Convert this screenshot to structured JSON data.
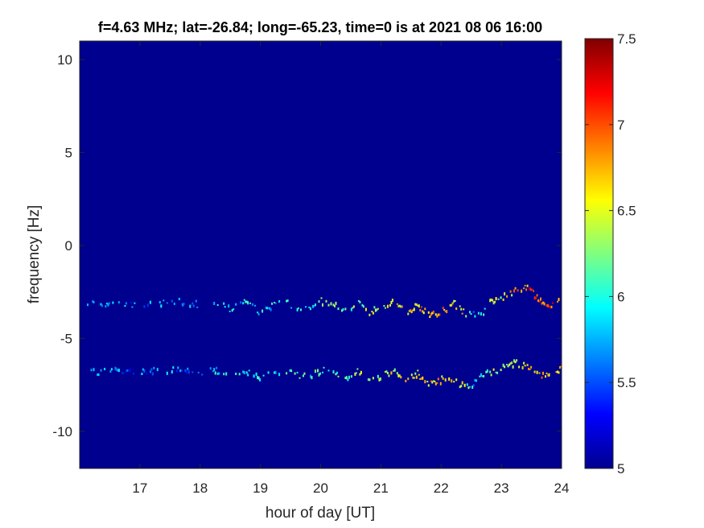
{
  "chart_data": {
    "type": "heatmap",
    "title": "f=4.63 MHz;  lat=-26.84; long=-65.23, time=0 is at 2021 08 06 16:00",
    "xlabel": "hour of day [UT]",
    "ylabel": "frequency [Hz]",
    "xlim": [
      16,
      24
    ],
    "ylim": [
      -12,
      11
    ],
    "xticks": [
      17,
      18,
      19,
      20,
      21,
      22,
      23,
      24
    ],
    "yticks": [
      -10,
      -5,
      0,
      5,
      10
    ],
    "colorbar": {
      "colormap": "jet",
      "range": [
        5,
        7.5
      ],
      "ticks": [
        5,
        5.5,
        6,
        6.5,
        7,
        7.5
      ]
    },
    "background_value": 5,
    "traces": [
      {
        "x": [
          16.1,
          16.6,
          17.0,
          17.4,
          17.7,
          18.0,
          18.2,
          18.5,
          18.7,
          19.0,
          19.2,
          19.4,
          19.6,
          19.8,
          20.0,
          20.2,
          20.4,
          20.6,
          20.8,
          21.0,
          21.2,
          21.4,
          21.6,
          21.8,
          22.0,
          22.2,
          22.4,
          22.55,
          22.65,
          22.8,
          23.0,
          23.2,
          23.4,
          23.6,
          23.8,
          24.0
        ],
        "y": [
          -3.1,
          -3.1,
          -3.2,
          -3.1,
          -3.0,
          -3.2,
          -3.0,
          -3.4,
          -3.0,
          -3.6,
          -3.2,
          -3.0,
          -3.4,
          -3.3,
          -3.0,
          -3.2,
          -3.4,
          -3.1,
          -3.6,
          -3.3,
          -3.0,
          -3.6,
          -3.2,
          -3.8,
          -3.5,
          -3.1,
          -3.7,
          -3.7,
          -3.8,
          -3.0,
          -2.8,
          -2.4,
          -2.2,
          -2.9,
          -3.3,
          -2.8
        ],
        "intensity": [
          5.4,
          5.4,
          5.4,
          5.4,
          5.4,
          5.5,
          5.6,
          5.7,
          5.6,
          5.8,
          5.7,
          5.7,
          5.8,
          5.8,
          5.9,
          6.0,
          6.1,
          6.1,
          6.2,
          6.3,
          6.4,
          6.5,
          6.6,
          6.7,
          6.7,
          6.5,
          6.3,
          5.5,
          6.0,
          6.2,
          6.4,
          6.6,
          6.8,
          6.9,
          7.0,
          6.5
        ]
      },
      {
        "x": [
          16.1,
          16.6,
          17.0,
          17.4,
          17.7,
          18.0,
          18.2,
          18.5,
          18.7,
          19.0,
          19.2,
          19.4,
          19.6,
          19.8,
          20.0,
          20.2,
          20.4,
          20.6,
          20.8,
          21.0,
          21.2,
          21.4,
          21.6,
          21.8,
          22.0,
          22.2,
          22.4,
          22.55,
          22.65,
          22.8,
          23.0,
          23.2,
          23.4,
          23.6,
          23.8,
          24.0
        ],
        "y": [
          -6.8,
          -6.7,
          -6.8,
          -6.7,
          -6.6,
          -6.8,
          -6.7,
          -6.9,
          -6.7,
          -7.1,
          -6.8,
          -6.7,
          -7.0,
          -7.0,
          -6.7,
          -6.9,
          -7.1,
          -6.8,
          -7.3,
          -7.0,
          -6.7,
          -7.2,
          -6.9,
          -7.5,
          -7.2,
          -7.3,
          -7.6,
          -7.4,
          -7.0,
          -6.8,
          -6.6,
          -6.3,
          -6.5,
          -6.9,
          -7.0,
          -6.6
        ],
        "intensity": [
          5.4,
          5.4,
          5.4,
          5.4,
          5.4,
          5.5,
          5.6,
          5.6,
          5.6,
          5.7,
          5.7,
          5.7,
          5.8,
          5.8,
          5.8,
          5.9,
          6.0,
          6.1,
          6.1,
          6.2,
          6.3,
          6.4,
          6.5,
          6.6,
          6.6,
          6.4,
          6.2,
          5.5,
          5.9,
          6.1,
          6.2,
          6.4,
          6.5,
          6.6,
          6.6,
          6.4
        ]
      }
    ]
  }
}
